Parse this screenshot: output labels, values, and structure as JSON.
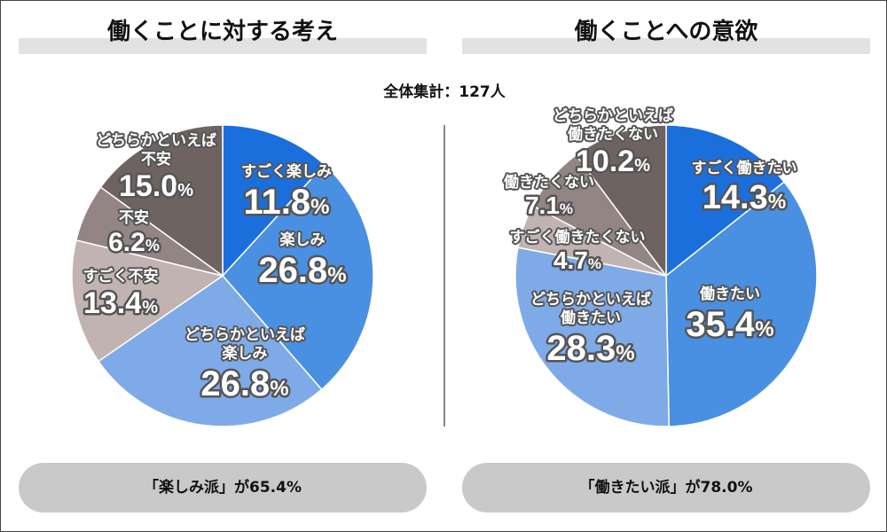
{
  "total_label": "全体集計：127人",
  "chart_data": [
    {
      "type": "pie",
      "title": "働くことに対する考え",
      "summary": "「楽しみ派」が65.4%",
      "slices": [
        {
          "label": "すごく楽しみ",
          "value": 11.8,
          "color": "#1b6fdc"
        },
        {
          "label": "楽しみ",
          "value": 26.8,
          "color": "#4a90e2"
        },
        {
          "label": "どちらかといえば楽しみ",
          "value": 26.8,
          "color": "#7eaae8"
        },
        {
          "label": "すごく不安",
          "value": 13.4,
          "color": "#c1b3b1"
        },
        {
          "label": "不安",
          "value": 6.2,
          "color": "#938583"
        },
        {
          "label": "どちらかといえば不安",
          "value": 15.0,
          "color": "#6f6361"
        }
      ]
    },
    {
      "type": "pie",
      "title": "働くことへの意欲",
      "summary": "「働きたい派」が78.0%",
      "slices": [
        {
          "label": "すごく働きたい",
          "value": 14.3,
          "color": "#1b6fdc"
        },
        {
          "label": "働きたい",
          "value": 35.4,
          "color": "#4a90e2"
        },
        {
          "label": "どちらかといえば働きたい",
          "value": 28.3,
          "color": "#7eaae8"
        },
        {
          "label": "すごく働きたくない",
          "value": 4.7,
          "color": "#c1b3b1"
        },
        {
          "label": "働きたくない",
          "value": 7.1,
          "color": "#938583"
        },
        {
          "label": "どちらかといえば働きたくない",
          "value": 10.2,
          "color": "#6f6361"
        }
      ]
    }
  ]
}
